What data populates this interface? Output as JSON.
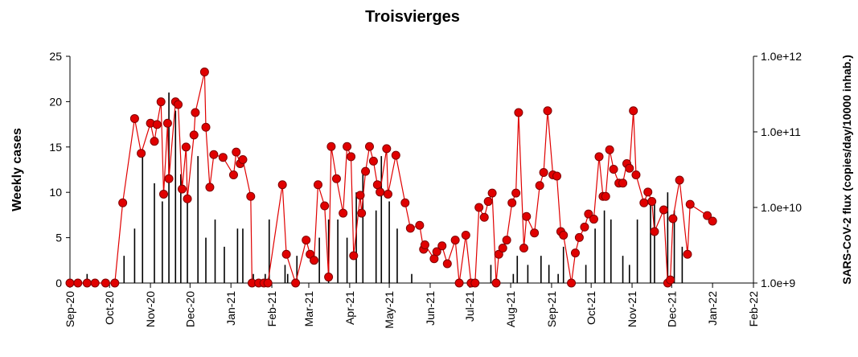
{
  "chart_data": {
    "type": "combo",
    "title": "Troisvierges",
    "y_label": "Weekly cases",
    "y2_label": "SARS-CoV-2 flux (copies/day/10000 inhab.)",
    "xlim": [
      0,
      518
    ],
    "xticks": [
      {
        "value": 0,
        "label": "Sep-20"
      },
      {
        "value": 30,
        "label": "Oct-20"
      },
      {
        "value": 61,
        "label": "Nov-20"
      },
      {
        "value": 91,
        "label": "Dec-20"
      },
      {
        "value": 122,
        "label": "Jan-21"
      },
      {
        "value": 153,
        "label": "Feb-21"
      },
      {
        "value": 181,
        "label": "Mar-21"
      },
      {
        "value": 212,
        "label": "Apr-21"
      },
      {
        "value": 242,
        "label": "May-21"
      },
      {
        "value": 273,
        "label": "Jun-21"
      },
      {
        "value": 303,
        "label": "Jul-21"
      },
      {
        "value": 334,
        "label": "Aug-21"
      },
      {
        "value": 365,
        "label": "Sep-21"
      },
      {
        "value": 395,
        "label": "Oct-21"
      },
      {
        "value": 426,
        "label": "Nov-21"
      },
      {
        "value": 456,
        "label": "Dec-21"
      },
      {
        "value": 487,
        "label": "Jan-22"
      },
      {
        "value": 518,
        "label": "Feb-22"
      }
    ],
    "ylim": [
      0,
      25
    ],
    "yticks": [
      0,
      5,
      10,
      15,
      20,
      25
    ],
    "y2lim": [
      1000000000.0,
      1000000000000.0
    ],
    "y2log": true,
    "y2ticks": [
      {
        "value": 1000000000.0,
        "label": "1.0e+9"
      },
      {
        "value": 10000000000.0,
        "label": "1.0e+10"
      },
      {
        "value": 100000000000.0,
        "label": "1.0e+11"
      },
      {
        "value": 1000000000000.0,
        "label": "1.0e+12"
      }
    ],
    "series": [
      {
        "type": "bar",
        "color": "#000000",
        "x": [
          13,
          41,
          49,
          55,
          64,
          70,
          75,
          80,
          84,
          89,
          97,
          103,
          110,
          117,
          127,
          131,
          139,
          148,
          151,
          163,
          165,
          172,
          189,
          196,
          203,
          210,
          217,
          222,
          232,
          236,
          242,
          248,
          259,
          319,
          336,
          339,
          347,
          357,
          363,
          370,
          374,
          391,
          398,
          405,
          410,
          419,
          424,
          430,
          440,
          443,
          453,
          458,
          464
        ],
        "values": [
          1,
          3,
          6,
          14,
          11,
          9,
          21,
          19,
          12,
          10,
          14,
          5,
          7,
          4,
          6,
          6,
          1,
          1,
          7,
          2,
          1,
          3,
          5,
          7,
          7,
          5,
          10,
          12,
          8,
          14,
          9,
          6,
          1,
          2,
          1,
          3,
          2,
          3,
          2,
          1,
          4,
          2,
          6,
          8,
          7,
          3,
          2,
          7,
          9,
          9,
          10,
          8,
          4
        ]
      },
      {
        "type": "line",
        "axis": "y2",
        "color": "#e00000",
        "x": [
          0,
          6,
          13,
          19,
          27,
          34,
          40,
          49,
          54,
          61,
          64,
          66,
          69,
          71,
          74,
          75,
          80,
          82,
          85,
          88,
          89,
          94,
          95,
          102,
          103,
          106,
          109,
          116,
          124,
          126,
          129,
          131,
          137,
          138,
          143,
          147,
          150,
          161,
          164,
          171,
          179,
          182,
          185,
          188,
          193,
          196,
          198,
          202,
          207,
          210,
          213,
          215,
          220,
          221,
          224,
          227,
          230,
          233,
          235,
          240,
          241,
          247,
          254,
          258,
          265,
          268,
          269,
          276,
          278,
          282,
          286,
          292,
          295,
          300,
          304,
          307,
          310,
          314,
          317,
          320,
          323,
          325,
          328,
          331,
          335,
          338,
          340,
          344,
          346,
          352,
          356,
          359,
          362,
          366,
          369,
          372,
          374,
          380,
          383,
          386,
          390,
          393,
          397,
          401,
          404,
          406,
          409,
          412,
          416,
          419,
          422,
          424,
          427,
          429,
          435,
          438,
          441,
          443,
          450,
          453,
          455,
          457,
          462,
          468,
          470,
          483,
          487
        ],
        "values": [
          1000000000.0,
          1000000000.0,
          1000000000.0,
          1000000000.0,
          1000000000.0,
          1000000000.0,
          11500000000.0,
          150000000000.0,
          52000000000.0,
          130000000000.0,
          75000000000.0,
          125000000000.0,
          250000000000.0,
          15000000000.0,
          130000000000.0,
          24000000000.0,
          250000000000.0,
          230000000000.0,
          17500000000.0,
          63000000000.0,
          13000000000.0,
          91000000000.0,
          180000000000.0,
          620000000000.0,
          115000000000.0,
          18500000000.0,
          50000000000.0,
          46000000000.0,
          27000000000.0,
          54000000000.0,
          38000000000.0,
          43000000000.0,
          14000000000.0,
          1000000000.0,
          1000000000.0,
          1000000000.0,
          1000000000.0,
          20000000000.0,
          2400000000.0,
          1000000000.0,
          3700000000.0,
          2400000000.0,
          2000000000.0,
          20000000000.0,
          10500000000.0,
          1200000000.0,
          64000000000.0,
          24000000000.0,
          8400000000.0,
          64000000000.0,
          47000000000.0,
          2300000000.0,
          14500000000.0,
          8400000000.0,
          30000000000.0,
          64000000000.0,
          41000000000.0,
          20000000000.0,
          16000000000.0,
          60000000000.0,
          15000000000.0,
          49000000000.0,
          11500000000.0,
          5300000000.0,
          5800000000.0,
          2800000000.0,
          3200000000.0,
          2100000000.0,
          2600000000.0,
          3100000000.0,
          1800000000.0,
          3700000000.0,
          1000000000.0,
          4300000000.0,
          1000000000.0,
          1000000000.0,
          10000000000.0,
          7400000000.0,
          12000000000.0,
          15500000000.0,
          1000000000.0,
          2400000000.0,
          2900000000.0,
          3700000000.0,
          11500000000.0,
          15500000000.0,
          180000000000.0,
          2900000000.0,
          7600000000.0,
          4600000000.0,
          19500000000.0,
          29000000000.0,
          190000000000.0,
          27000000000.0,
          26000000000.0,
          4800000000.0,
          4300000000.0,
          1000000000.0,
          2500000000.0,
          4000000000.0,
          5500000000.0,
          8200000000.0,
          7000000000.0,
          47000000000.0,
          14000000000.0,
          14000000000.0,
          58000000000.0,
          32000000000.0,
          21000000000.0,
          21000000000.0,
          38000000000.0,
          33000000000.0,
          190000000000.0,
          27000000000.0,
          11500000000.0,
          16000000000.0,
          12000000000.0,
          4800000000.0,
          9300000000.0,
          1000000000.0,
          1100000000.0,
          7100000000.0,
          23000000000.0,
          2400000000.0,
          11000000000.0,
          7800000000.0,
          6600000000.0
        ]
      }
    ]
  }
}
